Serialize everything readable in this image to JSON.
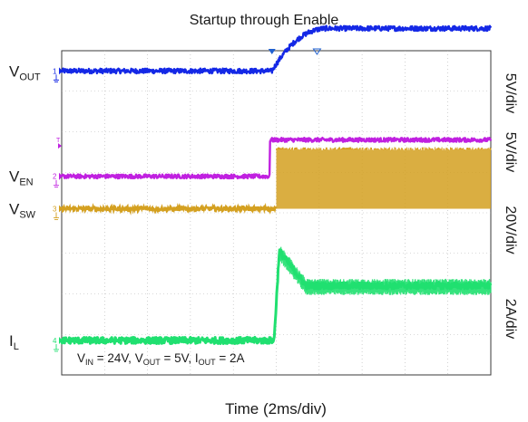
{
  "chart_data": {
    "type": "line",
    "title": "Startup through Enable",
    "xlabel": "Time (2ms/div)",
    "x_divisions": 10,
    "y_divisions": 8,
    "time_per_div_ms": 2,
    "annotation": {
      "parts": [
        {
          "text": "V",
          "sub": "IN",
          "after": " = 24V, "
        },
        {
          "text": "V",
          "sub": "OUT",
          "after": " = 5V, "
        },
        {
          "text": "I",
          "sub": "OUT",
          "after": " = 2A"
        }
      ]
    },
    "series": [
      {
        "name": "V",
        "name_sub": "OUT",
        "color": "#1428e6",
        "scale": "5V/div",
        "marker_div": 7.5,
        "marker_icon": "channel-1-marker-icon",
        "waveform": {
          "kind": "softstart",
          "low_div": 7.5,
          "high_div": 8.55,
          "t_start_div": 4.9,
          "t_end_div": 6.2,
          "noise_div": 0.06
        }
      },
      {
        "name": "V",
        "name_sub": "EN",
        "color": "#c020e0",
        "scale": "5V/div",
        "marker_div": 4.9,
        "marker_icon": "channel-2-marker-icon",
        "trigger_marker_icon": "trigger-level-marker-icon",
        "trigger_div": 5.65,
        "waveform": {
          "kind": "step",
          "low_div": 4.9,
          "high_div": 5.8,
          "t_start_div": 4.85,
          "noise_div": 0.05
        }
      },
      {
        "name": "V",
        "name_sub": "SW",
        "color": "#d4a020",
        "scale": "20V/div",
        "marker_div": 4.1,
        "marker_icon": "channel-3-marker-icon",
        "waveform": {
          "kind": "switching",
          "low_div": 4.1,
          "high_div": 5.55,
          "t_start_div": 5.0,
          "noise_div": 0.06
        }
      },
      {
        "name": "I",
        "name_sub": "L",
        "color": "#20e070",
        "scale": "2A/div",
        "marker_div": 0.85,
        "marker_icon": "channel-4-marker-icon",
        "waveform": {
          "kind": "spike",
          "low_div": 0.85,
          "peak_div": 3.05,
          "settle_div": 2.2,
          "t_start_div": 4.95,
          "t_settle_div": 5.7,
          "noise_div": 0.08
        }
      }
    ],
    "trigger_position_div": 4.9,
    "cursor_position_div": 5.95
  }
}
